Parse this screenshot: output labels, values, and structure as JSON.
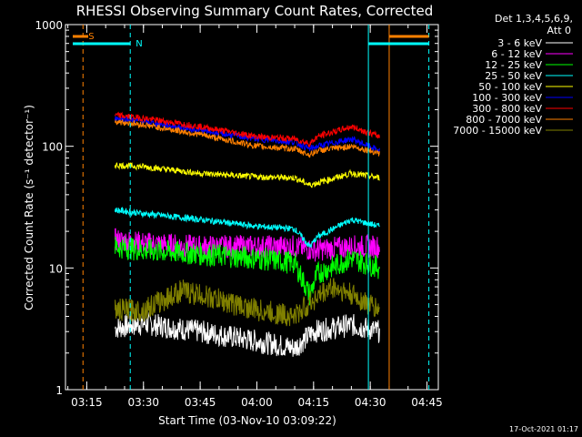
{
  "chart_data": {
    "type": "line",
    "title": "RHESSI Observing Summary Count Rates, Corrected",
    "xlabel": "Start Time (03-Nov-10 03:09:22)",
    "ylabel": "Corrected Count Rate (s⁻¹ detector⁻¹)",
    "xlim": [
      "03:09:22",
      "04:48:00"
    ],
    "ylim": [
      1,
      1000
    ],
    "yscale": "log",
    "x_ticks": [
      "03:15",
      "03:30",
      "03:45",
      "04:00",
      "04:15",
      "04:30",
      "04:45"
    ],
    "y_ticks": [
      "1",
      "10",
      "100",
      "1000"
    ],
    "legend_header": [
      "Det 1,3,4,5,6,9,",
      "Att 0"
    ],
    "legend_position": "right",
    "timestamp": "17-Oct-2021 01:17",
    "flags": [
      {
        "label": "S",
        "color": "#ff8000",
        "time": "03:14:00",
        "style": "dashed"
      },
      {
        "label": "N",
        "color": "#00ffff",
        "time": "03:26:30",
        "style": "dashed"
      }
    ],
    "boundaries": [
      {
        "color": "#00ffff",
        "time": "04:29:30"
      },
      {
        "color": "#ff8000",
        "time": "04:35:00"
      },
      {
        "color": "#00ffff",
        "time": "04:45:30",
        "style": "dashed"
      }
    ],
    "series": [
      {
        "name": "3 - 6 keV",
        "color": "#ffffff",
        "x": [
          "03:22:30",
          "03:30",
          "03:45",
          "04:00",
          "04:10",
          "04:15",
          "04:25",
          "04:32:30"
        ],
        "y": [
          3.2,
          3.5,
          3.0,
          2.5,
          2.2,
          3.0,
          3.4,
          3.0
        ]
      },
      {
        "name": "6 - 12 keV",
        "color": "#ff00ff",
        "x": [
          "03:22:30",
          "03:30",
          "03:45",
          "04:00",
          "04:10",
          "04:15",
          "04:25",
          "04:32:30"
        ],
        "y": [
          17,
          16,
          15,
          15,
          15,
          14,
          15,
          15
        ]
      },
      {
        "name": "12 - 25 keV",
        "color": "#00ff00",
        "x": [
          "03:22:30",
          "03:30",
          "03:45",
          "04:00",
          "04:10",
          "04:14",
          "04:16",
          "04:25",
          "04:32:30"
        ],
        "y": [
          15,
          14,
          13,
          12,
          11,
          6,
          9,
          12,
          10
        ]
      },
      {
        "name": "25 - 50 keV",
        "color": "#00ffff",
        "x": [
          "03:22:30",
          "03:30",
          "03:45",
          "04:00",
          "04:10",
          "04:14",
          "04:16",
          "04:25",
          "04:32:30"
        ],
        "y": [
          30,
          28,
          25,
          22,
          21,
          15,
          18,
          25,
          22
        ]
      },
      {
        "name": "50 - 100 keV",
        "color": "#ffff00",
        "x": [
          "03:22:30",
          "03:30",
          "03:45",
          "04:00",
          "04:10",
          "04:14",
          "04:16",
          "04:25",
          "04:32:30"
        ],
        "y": [
          70,
          68,
          60,
          56,
          55,
          48,
          50,
          60,
          55
        ]
      },
      {
        "name": "100 - 300 keV",
        "color": "#0000ff",
        "x": [
          "03:22:30",
          "03:30",
          "03:45",
          "04:00",
          "04:10",
          "04:14",
          "04:16",
          "04:25",
          "04:32:30"
        ],
        "y": [
          170,
          160,
          135,
          115,
          108,
          95,
          100,
          115,
          92
        ]
      },
      {
        "name": "300 - 800 keV",
        "color": "#ff0000",
        "x": [
          "03:22:30",
          "03:30",
          "03:45",
          "04:00",
          "04:10",
          "04:14",
          "04:16",
          "04:25",
          "04:32:30"
        ],
        "y": [
          180,
          170,
          145,
          120,
          115,
          105,
          120,
          145,
          120
        ]
      },
      {
        "name": "800 - 7000 keV",
        "color": "#ff8000",
        "x": [
          "03:22:30",
          "03:30",
          "03:45",
          "04:00",
          "04:10",
          "04:14",
          "04:16",
          "04:25",
          "04:32:30"
        ],
        "y": [
          160,
          150,
          125,
          100,
          95,
          85,
          92,
          100,
          88
        ]
      },
      {
        "name": "7000 - 15000 keV",
        "color": "#808000",
        "x": [
          "03:22:30",
          "03:30",
          "03:40",
          "03:45",
          "04:00",
          "04:10",
          "04:15",
          "04:20",
          "04:25",
          "04:32:30"
        ],
        "y": [
          4.5,
          4.5,
          6.5,
          6.0,
          4.5,
          4.0,
          5.5,
          7.0,
          6.0,
          4.5
        ]
      }
    ]
  }
}
